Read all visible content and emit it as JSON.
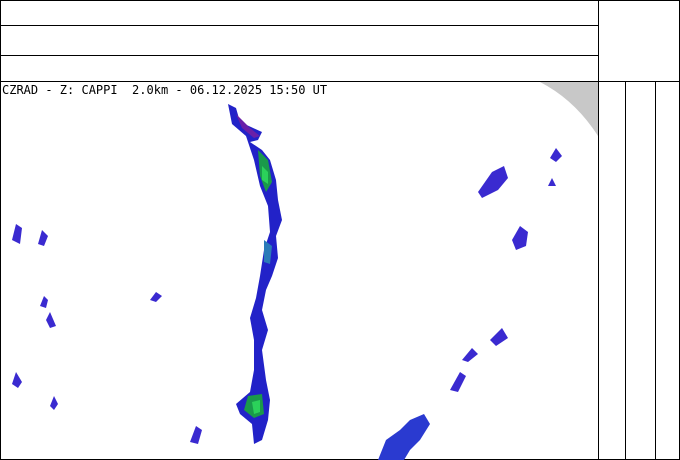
{
  "header": {
    "title": "CZRAD - Z: CAPPI  2.0km - 06.12.2025 15:50 UT"
  }
}
